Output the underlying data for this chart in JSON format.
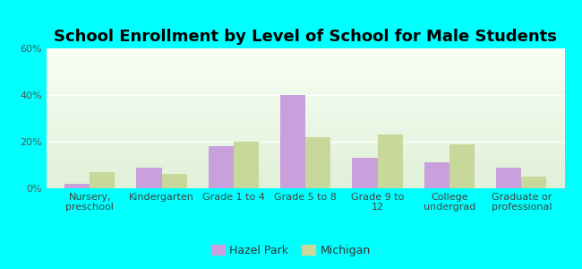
{
  "title": "School Enrollment by Level of School for Male Students",
  "categories": [
    "Nursery,\npreschool",
    "Kindergarten",
    "Grade 1 to 4",
    "Grade 5 to 8",
    "Grade 9 to\n12",
    "College\nundergrad",
    "Graduate or\nprofessional"
  ],
  "hazel_park": [
    2,
    9,
    18,
    40,
    13,
    11,
    9
  ],
  "michigan": [
    7,
    6,
    20,
    22,
    23,
    19,
    5
  ],
  "hazel_park_color": "#c9a0dc",
  "michigan_color": "#c8d89a",
  "background_color": "#00ffff",
  "ylim": [
    0,
    60
  ],
  "yticks": [
    0,
    20,
    40,
    60
  ],
  "ytick_labels": [
    "0%",
    "20%",
    "40%",
    "60%"
  ],
  "title_fontsize": 13,
  "tick_fontsize": 8,
  "legend_fontsize": 9,
  "bar_width": 0.35,
  "grad_top": "#f8fff4",
  "grad_bottom": "#dff0d8"
}
